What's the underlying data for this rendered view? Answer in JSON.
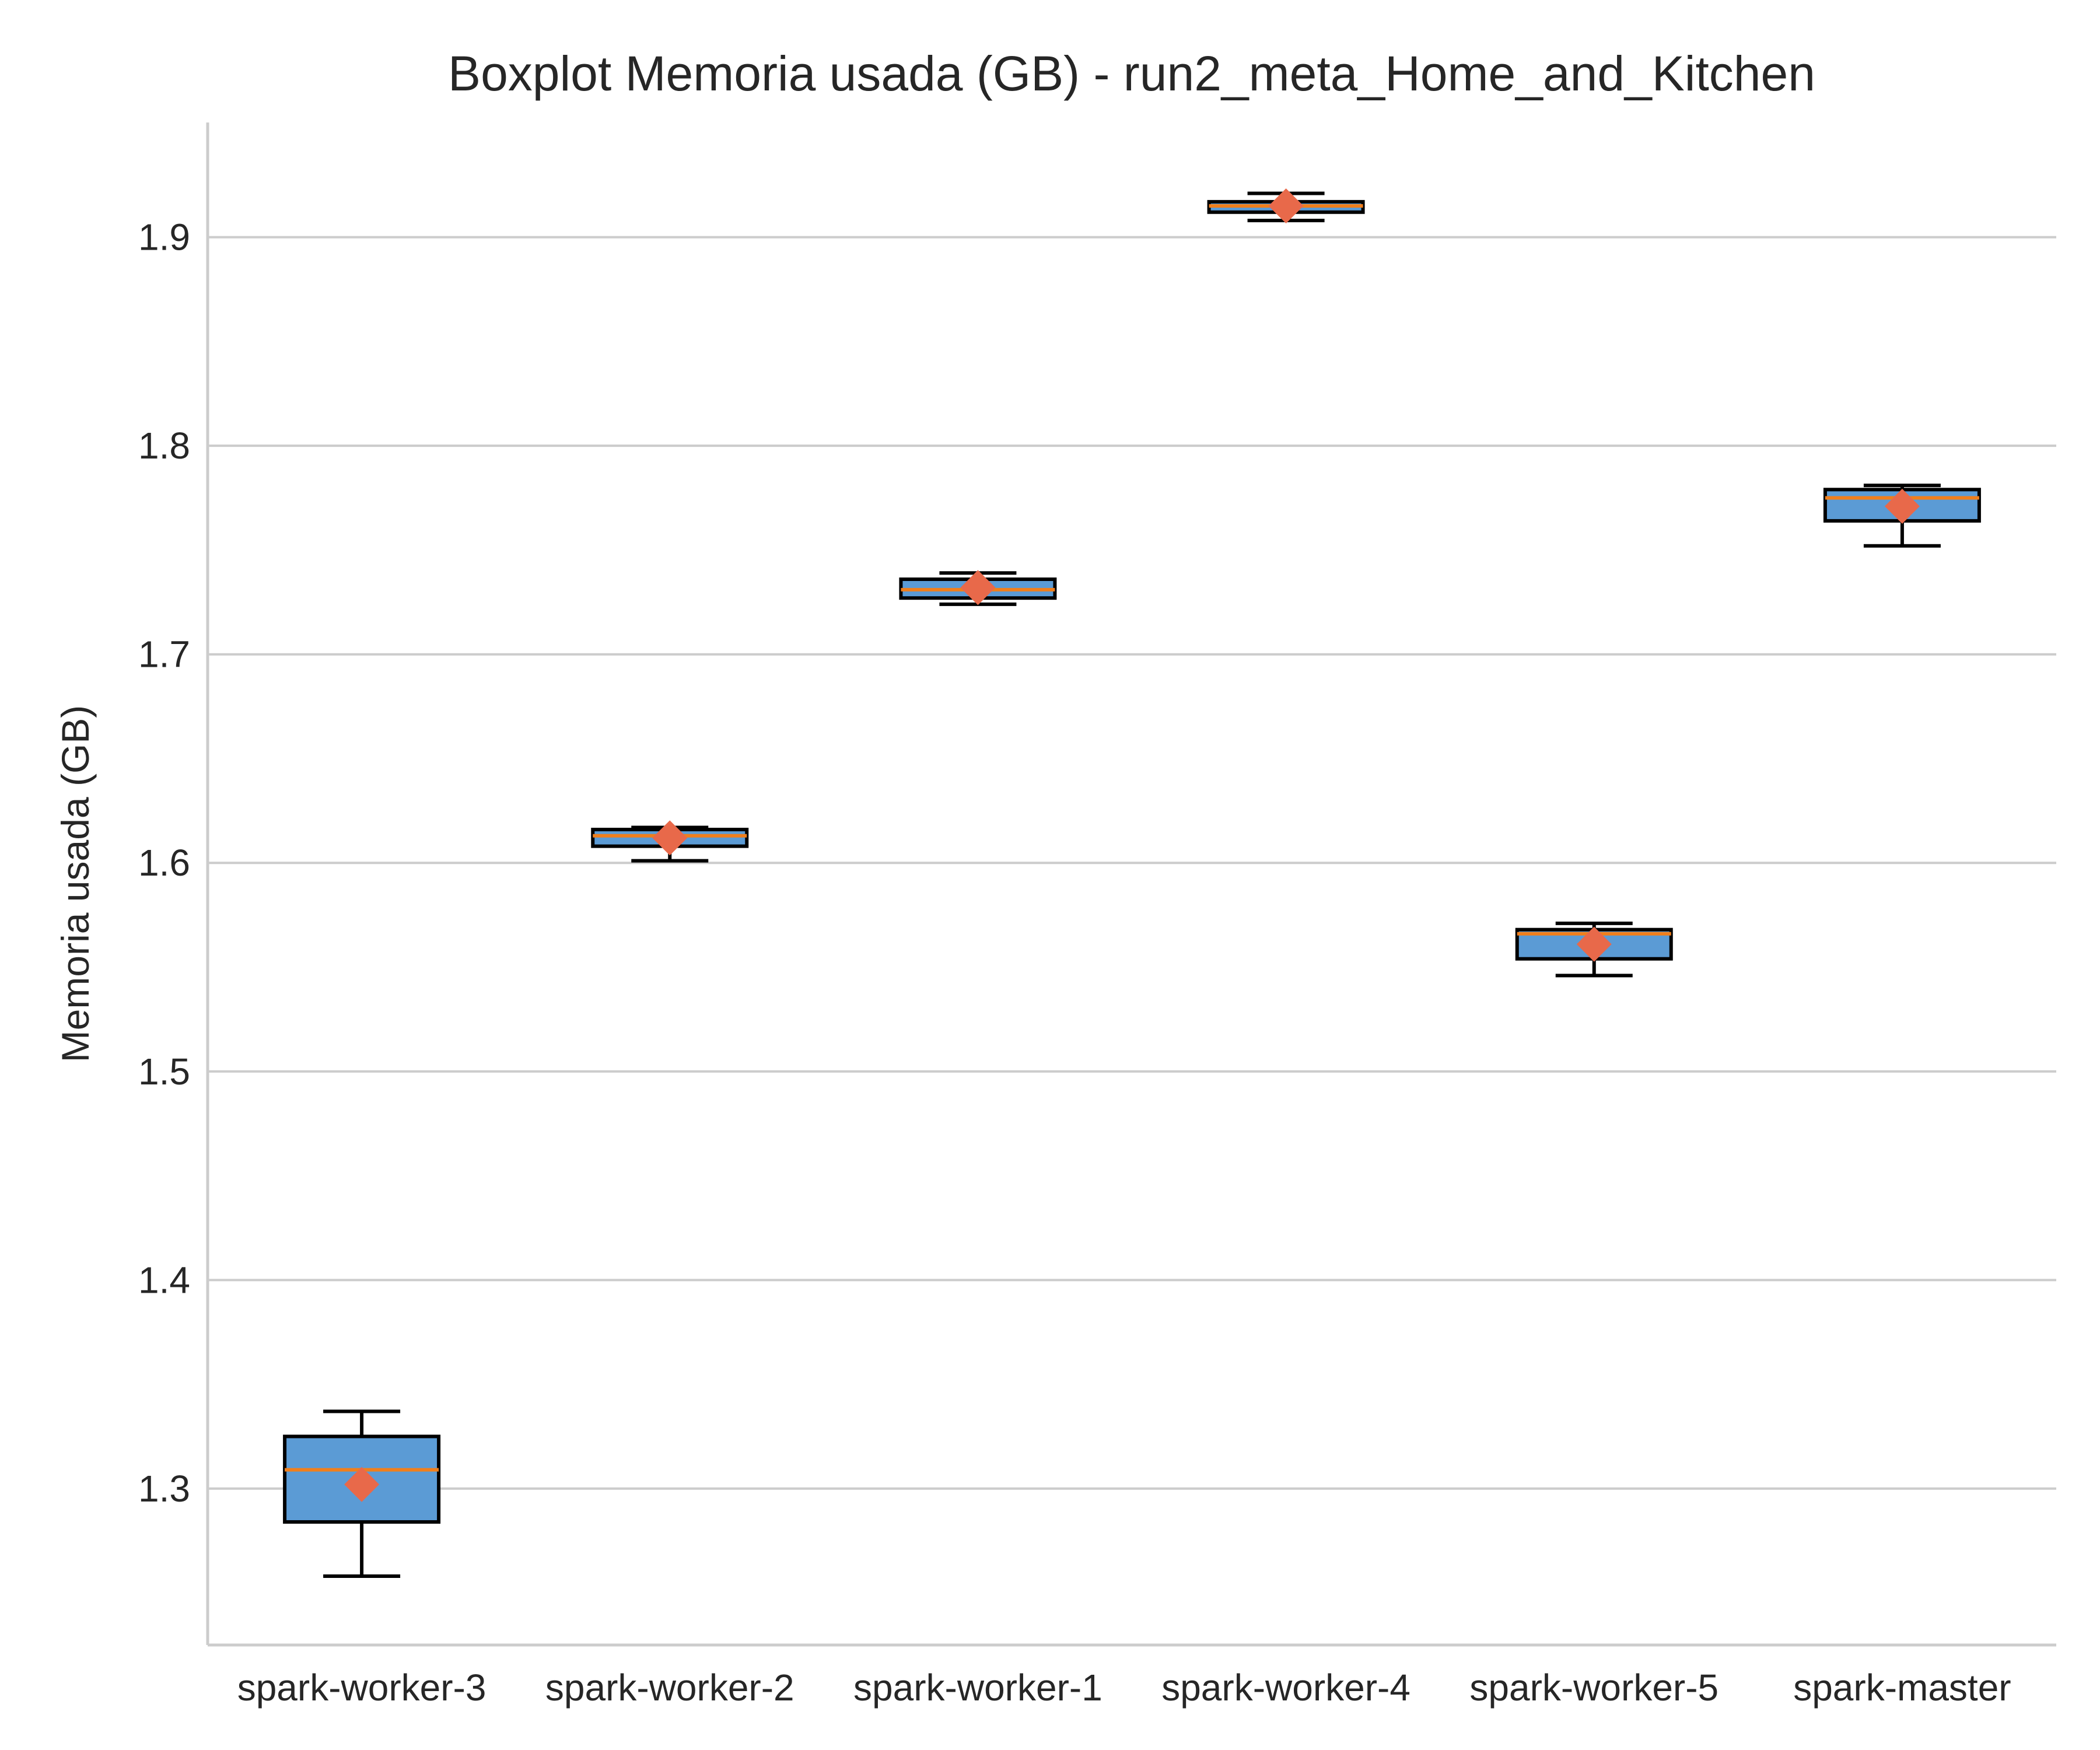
{
  "chart_data": {
    "type": "boxplot",
    "title": "Boxplot Memoria usada (GB) - run2_meta_Home_and_Kitchen",
    "xlabel": "",
    "ylabel": "Memoria usada (GB)",
    "ylim": [
      1.225,
      1.955
    ],
    "yticks": [
      1.3,
      1.4,
      1.5,
      1.6,
      1.7,
      1.8,
      1.9
    ],
    "ytick_labels": [
      "1.3",
      "1.4",
      "1.5",
      "1.6",
      "1.7",
      "1.8",
      "1.9"
    ],
    "grid": "horizontal",
    "categories": [
      "spark-worker-3",
      "spark-worker-2",
      "spark-worker-1",
      "spark-worker-4",
      "spark-worker-5",
      "spark-master"
    ],
    "boxes": [
      {
        "whislo": 1.258,
        "q1": 1.284,
        "med": 1.309,
        "q3": 1.325,
        "whishi": 1.337,
        "mean": 1.302
      },
      {
        "whislo": 1.601,
        "q1": 1.608,
        "med": 1.613,
        "q3": 1.616,
        "whishi": 1.617,
        "mean": 1.612
      },
      {
        "whislo": 1.724,
        "q1": 1.727,
        "med": 1.731,
        "q3": 1.736,
        "whishi": 1.739,
        "mean": 1.732
      },
      {
        "whislo": 1.908,
        "q1": 1.912,
        "med": 1.915,
        "q3": 1.917,
        "whishi": 1.921,
        "mean": 1.915
      },
      {
        "whislo": 1.546,
        "q1": 1.554,
        "med": 1.566,
        "q3": 1.568,
        "whishi": 1.571,
        "mean": 1.561
      },
      {
        "whislo": 1.752,
        "q1": 1.764,
        "med": 1.775,
        "q3": 1.779,
        "whishi": 1.781,
        "mean": 1.771
      }
    ],
    "colors": {
      "box_fill": "#5b9bd5",
      "box_edge": "#000000",
      "median": "#f07f1c",
      "mean_marker": "#e8694a",
      "grid": "#cccccc",
      "text": "#262626"
    },
    "mean_marker_shape": "diamond"
  }
}
